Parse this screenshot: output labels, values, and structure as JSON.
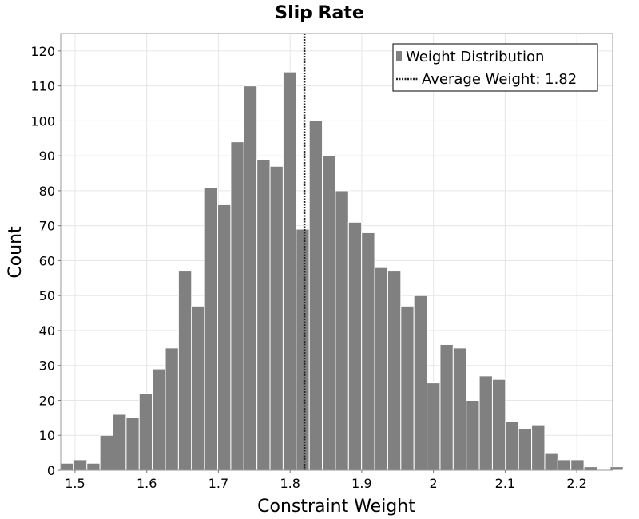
{
  "chart_data": {
    "type": "bar",
    "title": "Slip Rate",
    "xlabel": "Constraint Weight",
    "ylabel": "Count",
    "xlim": [
      1.48,
      2.25
    ],
    "ylim": [
      0,
      125
    ],
    "bin_width": 0.01825,
    "bin_start": 1.48,
    "values": [
      2,
      3,
      2,
      10,
      16,
      15,
      22,
      29,
      35,
      57,
      47,
      81,
      76,
      94,
      110,
      89,
      87,
      114,
      69,
      100,
      90,
      80,
      71,
      68,
      58,
      57,
      47,
      50,
      25,
      36,
      35,
      20,
      27,
      26,
      14,
      12,
      13,
      5,
      3,
      3,
      1,
      0,
      1
    ],
    "x_ticks": [
      1.5,
      1.6,
      1.7,
      1.8,
      1.9,
      2,
      2.1,
      2.2
    ],
    "x_tick_labels": [
      "1.5",
      "1.6",
      "1.7",
      "1.8",
      "1.9",
      "2",
      "2.1",
      "2.2"
    ],
    "y_ticks": [
      0,
      10,
      20,
      30,
      40,
      50,
      60,
      70,
      80,
      90,
      100,
      110,
      120
    ],
    "y_tick_labels": [
      "0",
      "10",
      "20",
      "30",
      "40",
      "50",
      "60",
      "70",
      "80",
      "90",
      "100",
      "110",
      "120"
    ],
    "mean": 1.82,
    "grid": true,
    "legend_position": "top-right",
    "legend": {
      "bars_label": "Weight Distribution",
      "line_label": "Average Weight: 1.82"
    },
    "colors": {
      "bar": "#808080",
      "mean_line": "#222222",
      "grid": "#e6e6e6"
    }
  }
}
